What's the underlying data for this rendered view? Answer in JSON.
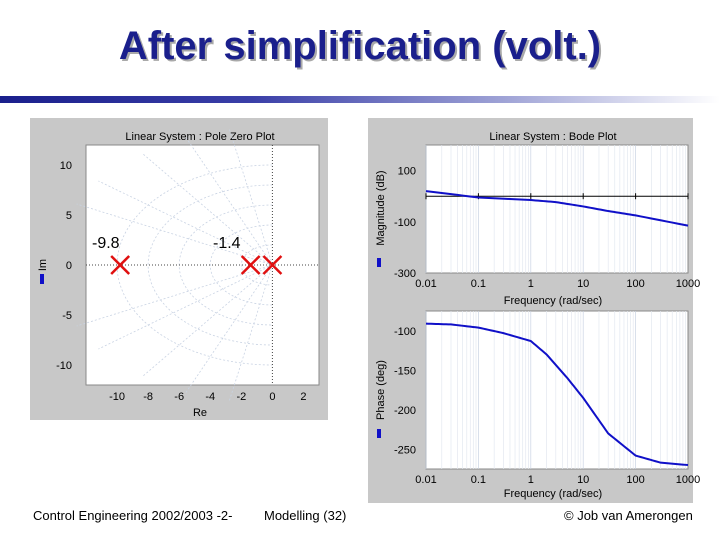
{
  "slide": {
    "title": "After simplification (volt.)",
    "footer_left": "Control Engineering 2002/2003 -2-",
    "footer_middle": "Modelling  (32)",
    "footer_right": "© Job van Amerongen"
  },
  "pz_plot": {
    "title": "Linear System : Pole Zero Plot",
    "xlabel": "Re",
    "ylabel": "Im",
    "xticks": [
      "-10",
      "-8",
      "-6",
      "-4",
      "-2",
      "0",
      "2"
    ],
    "yticks": [
      "10",
      "5",
      "0",
      "-5",
      "-10"
    ],
    "pole_labels": [
      "-9.8",
      "-1.4"
    ]
  },
  "bode_mag": {
    "title": "Linear System : Bode Plot",
    "ylabel": "Magnitude (dB)",
    "xlabel": "Frequency  (rad/sec)",
    "yticks": [
      "100",
      "-100",
      "-300"
    ],
    "xticks": [
      "0.01",
      "0.1",
      "1",
      "10",
      "100",
      "1000"
    ]
  },
  "bode_phase": {
    "ylabel": "Phase (deg)",
    "xlabel": "Frequency  (rad/sec)",
    "yticks": [
      "-100",
      "-150",
      "-200",
      "-250"
    ],
    "xticks": [
      "0.01",
      "0.1",
      "1",
      "10",
      "100",
      "1000"
    ]
  },
  "chart_data": [
    {
      "type": "scatter",
      "title": "Linear System : Pole Zero Plot",
      "xlabel": "Re",
      "ylabel": "Im",
      "xlim": [
        -12,
        3
      ],
      "ylim": [
        -12,
        12
      ],
      "series": [
        {
          "marker": "x",
          "color": "#e01010",
          "points": [
            [
              -9.8,
              0
            ],
            [
              -1.4,
              0
            ],
            [
              0,
              0
            ]
          ]
        }
      ],
      "annotations": [
        "-9.8",
        "-1.4"
      ],
      "grid": true
    },
    {
      "type": "line",
      "title": "Linear System : Bode Plot",
      "xscale": "log",
      "xlabel": "Frequency  (rad/sec)",
      "ylabel": "Magnitude (dB)",
      "xlim": [
        0.01,
        1000
      ],
      "ylim": [
        -300,
        200
      ],
      "color": "#1010c8",
      "x": [
        0.01,
        0.1,
        1,
        3,
        10,
        30,
        100,
        1000
      ],
      "y": [
        20,
        -5,
        -15,
        -23,
        -40,
        -58,
        -75,
        -115
      ],
      "reference_line_y": 0
    },
    {
      "type": "line",
      "xscale": "log",
      "xlabel": "Frequency  (rad/sec)",
      "ylabel": "Phase (deg)",
      "xlim": [
        0.01,
        1000
      ],
      "ylim": [
        -275,
        -75
      ],
      "color": "#1010c8",
      "x": [
        0.01,
        0.03,
        0.1,
        0.3,
        1,
        2,
        5,
        10,
        30,
        100,
        300,
        1000
      ],
      "y": [
        -91,
        -92,
        -96,
        -103,
        -113,
        -130,
        -160,
        -185,
        -230,
        -258,
        -267,
        -270
      ]
    }
  ]
}
